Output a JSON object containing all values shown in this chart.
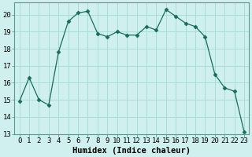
{
  "x": [
    0,
    1,
    2,
    3,
    4,
    5,
    6,
    7,
    8,
    9,
    10,
    11,
    12,
    13,
    14,
    15,
    16,
    17,
    18,
    19,
    20,
    21,
    22,
    23
  ],
  "y": [
    14.9,
    16.3,
    15.0,
    14.7,
    17.8,
    19.6,
    20.1,
    20.2,
    18.9,
    18.7,
    19.0,
    18.8,
    18.8,
    19.3,
    19.1,
    20.3,
    19.9,
    19.5,
    19.3,
    18.7,
    16.5,
    15.7,
    15.5,
    13.1
  ],
  "line_color": "#1a6b5e",
  "marker": "D",
  "marker_size": 2.5,
  "bg_color": "#cff0ee",
  "grid_color": "#a8ddd8",
  "xlabel": "Humidex (Indice chaleur)",
  "xlim": [
    -0.5,
    23.5
  ],
  "ylim": [
    13,
    20.7
  ],
  "yticks": [
    13,
    14,
    15,
    16,
    17,
    18,
    19,
    20
  ],
  "xticks": [
    0,
    1,
    2,
    3,
    4,
    5,
    6,
    7,
    8,
    9,
    10,
    11,
    12,
    13,
    14,
    15,
    16,
    17,
    18,
    19,
    20,
    21,
    22,
    23
  ],
  "xlabel_fontsize": 7.5,
  "tick_fontsize": 6.5,
  "spine_color": "#5a9a90"
}
